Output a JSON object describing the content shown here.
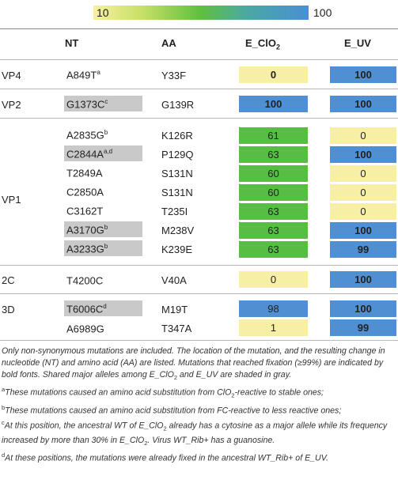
{
  "scale": {
    "low": "10",
    "high": "100"
  },
  "headers": {
    "nt": "NT",
    "aa": "AA",
    "e1_main": "E_ClO",
    "e1_sub": "2",
    "e2": "E_UV"
  },
  "groups": {
    "vp4": "VP4",
    "vp2": "VP2",
    "vp1": "VP1",
    "c2": "2C",
    "d3": "3D"
  },
  "rows": [
    {
      "nt": "A849T",
      "nt_sup": "a",
      "aa": "Y33F",
      "e1": "0",
      "e2": "100"
    },
    {
      "nt": "G1373C",
      "nt_sup": "c",
      "aa": "G139R",
      "e1": "100",
      "e2": "100"
    },
    {
      "nt": "A2835G",
      "nt_sup": "b",
      "aa": "K126R",
      "e1": "61",
      "e2": "0"
    },
    {
      "nt": "C2844A",
      "nt_sup": "a,d",
      "aa": "P129Q",
      "e1": "63",
      "e2": "100"
    },
    {
      "nt": "T2849A",
      "nt_sup": "",
      "aa": "S131N",
      "e1": "60",
      "e2": "0"
    },
    {
      "nt": "C2850A",
      "nt_sup": "",
      "aa": "S131N",
      "e1": "60",
      "e2": "0"
    },
    {
      "nt": "C3162T",
      "nt_sup": "",
      "aa": "T235I",
      "e1": "63",
      "e2": "0"
    },
    {
      "nt": "A3170G",
      "nt_sup": "b",
      "aa": "M238V",
      "e1": "63",
      "e2": "100"
    },
    {
      "nt": "A3233G",
      "nt_sup": "b",
      "aa": "K239E",
      "e1": "63",
      "e2": "99"
    },
    {
      "nt": "T4200C",
      "nt_sup": "",
      "aa": "V40A",
      "e1": "0",
      "e2": "100"
    },
    {
      "nt": "T6006C",
      "nt_sup": "d",
      "aa": "M19T",
      "e1": "98",
      "e2": "100"
    },
    {
      "nt": "A6989G",
      "nt_sup": "",
      "aa": "T347A",
      "e1": "1",
      "e2": "99"
    }
  ],
  "footnotes": {
    "main_1": "Only non-synonymous mutations are included. The location of the mutation, and the resulting change in nucleotide (NT) and amino acid (AA) are listed. Mutations that reached fixation (≥99%) are indicated by bold fonts. Shared major alleles among E_ClO",
    "main_sub1": "2",
    "main_2": " and E_UV are shaded in gray.",
    "a_mark": "a",
    "a_1": "These mutations caused an amino acid substitution from ClO",
    "a_sub": "2",
    "a_2": "-reactive to stable ones;",
    "b_mark": "b",
    "b_text": "These mutations caused an amino acid substitution from FC-reactive to less reactive ones;",
    "c_mark": "c",
    "c_1": "At this position, the ancestral WT of E_ClO",
    "c_sub1": "2",
    "c_2": " already has a cytosine as a major allele while its frequency increased by more than 30% in E_ClO",
    "c_sub2": "2",
    "c_3": ". Virus WT_Rib+ has a guanosine.",
    "d_mark": "d",
    "d_text": "At these positions, the mutations were already fixed in the ancestral WT_Rib+ of E_UV."
  }
}
